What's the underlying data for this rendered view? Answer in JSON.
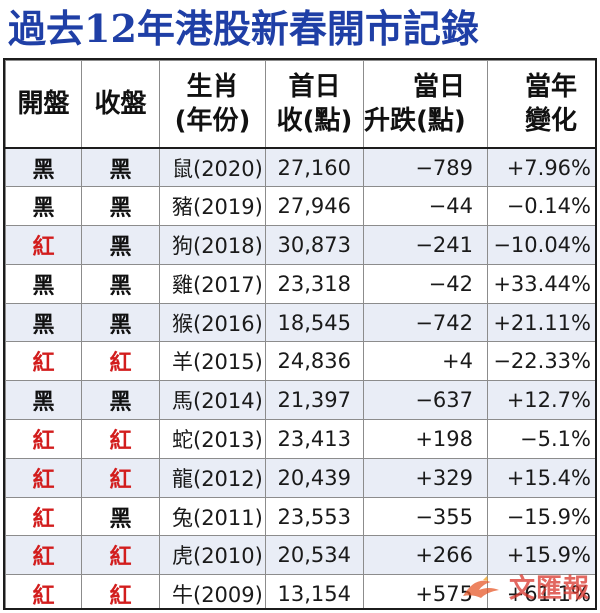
{
  "title": "過去12年港股新春開市記錄",
  "headers": {
    "open": "開盤",
    "close": "收盤",
    "zodiac_line1": "生肖",
    "zodiac_line2": "(年份)",
    "first_close_line1": "首日",
    "first_close_line2": "收(點)",
    "day_change_line1": "當日",
    "day_change_line2": "升跌(點)",
    "year_change_line1": "當年",
    "year_change_line2": "變化"
  },
  "colors": {
    "title": "#1f3fa6",
    "red": "#d21d1d",
    "black": "#111111",
    "stripe": "#e9edf6"
  },
  "rows": [
    {
      "open": "黑",
      "open_color": "black",
      "close": "黑",
      "close_color": "black",
      "zodiac": "鼠(2020)",
      "first_close": "27,160",
      "day_change": "−789",
      "year_change": "+7.96%"
    },
    {
      "open": "黑",
      "open_color": "black",
      "close": "黑",
      "close_color": "black",
      "zodiac": "豬(2019)",
      "first_close": "27,946",
      "day_change": "−44",
      "year_change": "−0.14%"
    },
    {
      "open": "紅",
      "open_color": "red",
      "close": "黑",
      "close_color": "black",
      "zodiac": "狗(2018)",
      "first_close": "30,873",
      "day_change": "−241",
      "year_change": "−10.04%"
    },
    {
      "open": "黑",
      "open_color": "black",
      "close": "黑",
      "close_color": "black",
      "zodiac": "雞(2017)",
      "first_close": "23,318",
      "day_change": "−42",
      "year_change": "+33.44%"
    },
    {
      "open": "黑",
      "open_color": "black",
      "close": "黑",
      "close_color": "black",
      "zodiac": "猴(2016)",
      "first_close": "18,545",
      "day_change": "−742",
      "year_change": "+21.11%"
    },
    {
      "open": "紅",
      "open_color": "red",
      "close": "紅",
      "close_color": "red",
      "zodiac": "羊(2015)",
      "first_close": "24,836",
      "day_change": "+4",
      "year_change": "−22.33%"
    },
    {
      "open": "黑",
      "open_color": "black",
      "close": "黑",
      "close_color": "black",
      "zodiac": "馬(2014)",
      "first_close": "21,397",
      "day_change": "−637",
      "year_change": "+12.7%"
    },
    {
      "open": "紅",
      "open_color": "red",
      "close": "紅",
      "close_color": "red",
      "zodiac": "蛇(2013)",
      "first_close": "23,413",
      "day_change": "+198",
      "year_change": "−5.1%"
    },
    {
      "open": "紅",
      "open_color": "red",
      "close": "紅",
      "close_color": "red",
      "zodiac": "龍(2012)",
      "first_close": "20,439",
      "day_change": "+329",
      "year_change": "+15.4%"
    },
    {
      "open": "紅",
      "open_color": "red",
      "close": "黑",
      "close_color": "black",
      "zodiac": "兔(2011)",
      "first_close": "23,553",
      "day_change": "−355",
      "year_change": "−15.9%"
    },
    {
      "open": "紅",
      "open_color": "red",
      "close": "紅",
      "close_color": "red",
      "zodiac": "虎(2010)",
      "first_close": "20,534",
      "day_change": "+266",
      "year_change": "+15.9%"
    },
    {
      "open": "紅",
      "open_color": "red",
      "close": "紅",
      "close_color": "red",
      "zodiac": "牛(2009)",
      "first_close": "13,154",
      "day_change": "+575",
      "year_change": "+61.1%"
    }
  ],
  "watermark": {
    "text": "文匯報"
  }
}
